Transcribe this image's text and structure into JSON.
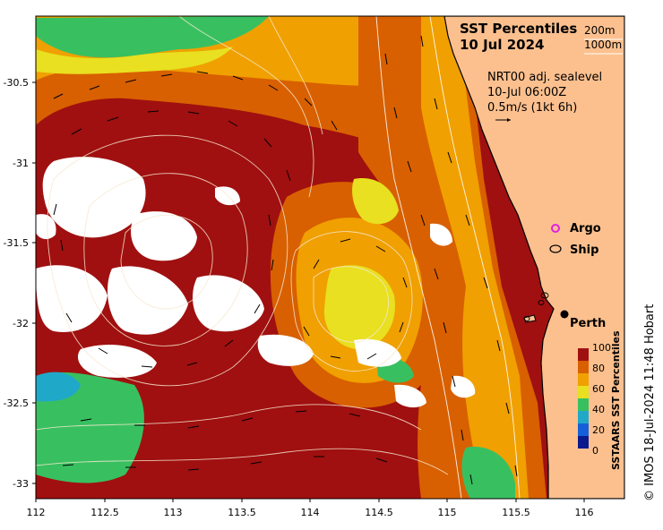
{
  "title": {
    "line1": "SST Percentiles",
    "line2": "10 Jul 2024"
  },
  "depth_contours": {
    "c1": "200m",
    "c2": "1000m"
  },
  "current_info": {
    "line1": "NRT00 adj. sealevel",
    "line2": "10-Jul 06:00Z",
    "line3": "0.5m/s (1kt 6h)"
  },
  "legend": {
    "argo": "Argo",
    "ship": "Ship",
    "argo_color": "#e020e0",
    "ship_color": "#000000"
  },
  "city": {
    "name": "Perth"
  },
  "colorbar": {
    "label": "SSTAARS SST Percentiles",
    "ticks": [
      "100",
      "80",
      "60",
      "40",
      "20",
      "0"
    ],
    "colors": [
      "#0a1a8c",
      "#1560d8",
      "#20a8c8",
      "#38c060",
      "#e8e020",
      "#f0a000",
      "#d86000",
      "#a01010"
    ]
  },
  "axes": {
    "x_ticks": [
      "112",
      "112.5",
      "113",
      "113.5",
      "114",
      "114.5",
      "115",
      "115.5",
      "116"
    ],
    "y_ticks": [
      "-30.5",
      "-31",
      "-31.5",
      "-32",
      "-32.5",
      "-33"
    ]
  },
  "credit": "© IMOS 18-Jul-2024 11:48 Hobart",
  "colors": {
    "land": "#fcc08e",
    "high": "#a01010",
    "upper": "#d86000",
    "mid": "#f0a000",
    "yellow": "#e8e020",
    "green": "#38c060",
    "cloud": "#ffffff"
  }
}
